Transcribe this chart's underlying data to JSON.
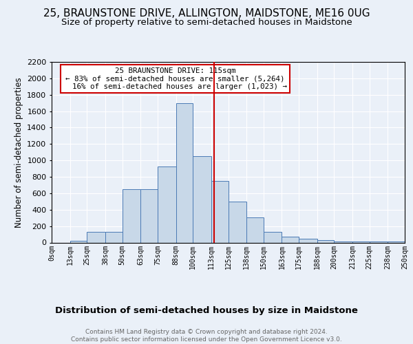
{
  "title1": "25, BRAUNSTONE DRIVE, ALLINGTON, MAIDSTONE, ME16 0UG",
  "title2": "Size of property relative to semi-detached houses in Maidstone",
  "xlabel": "Distribution of semi-detached houses by size in Maidstone",
  "ylabel": "Number of semi-detached properties",
  "footnote": "Contains HM Land Registry data © Crown copyright and database right 2024.\nContains public sector information licensed under the Open Government Licence v3.0.",
  "bin_edges": [
    0,
    13,
    25,
    38,
    50,
    63,
    75,
    88,
    100,
    113,
    125,
    138,
    150,
    163,
    175,
    188,
    200,
    213,
    225,
    238,
    250
  ],
  "bar_heights": [
    0,
    20,
    130,
    130,
    650,
    650,
    930,
    1700,
    1050,
    750,
    500,
    310,
    130,
    75,
    50,
    30,
    10,
    10,
    10,
    10
  ],
  "bar_color": "#c8d8e8",
  "bar_edge_color": "#4a7ab5",
  "property_size": 115,
  "red_line_color": "#cc0000",
  "annotation_text": "  25 BRAUNSTONE DRIVE: 115sqm  \n← 83% of semi-detached houses are smaller (5,264)\n  16% of semi-detached houses are larger (1,023) →",
  "annotation_box_color": "#ffffff",
  "annotation_box_edge": "#cc0000",
  "ylim": [
    0,
    2200
  ],
  "yticks": [
    0,
    200,
    400,
    600,
    800,
    1000,
    1200,
    1400,
    1600,
    1800,
    2000,
    2200
  ],
  "bg_color": "#eaf0f8",
  "plot_bg_color": "#eaf0f8",
  "grid_color": "#ffffff",
  "title1_fontsize": 11,
  "title2_fontsize": 9.5,
  "xlabel_fontsize": 9.5,
  "ylabel_fontsize": 8.5,
  "tick_labels": [
    "0sqm",
    "13sqm",
    "25sqm",
    "38sqm",
    "50sqm",
    "63sqm",
    "75sqm",
    "88sqm",
    "100sqm",
    "113sqm",
    "125sqm",
    "138sqm",
    "150sqm",
    "163sqm",
    "175sqm",
    "188sqm",
    "200sqm",
    "213sqm",
    "225sqm",
    "238sqm",
    "250sqm"
  ]
}
